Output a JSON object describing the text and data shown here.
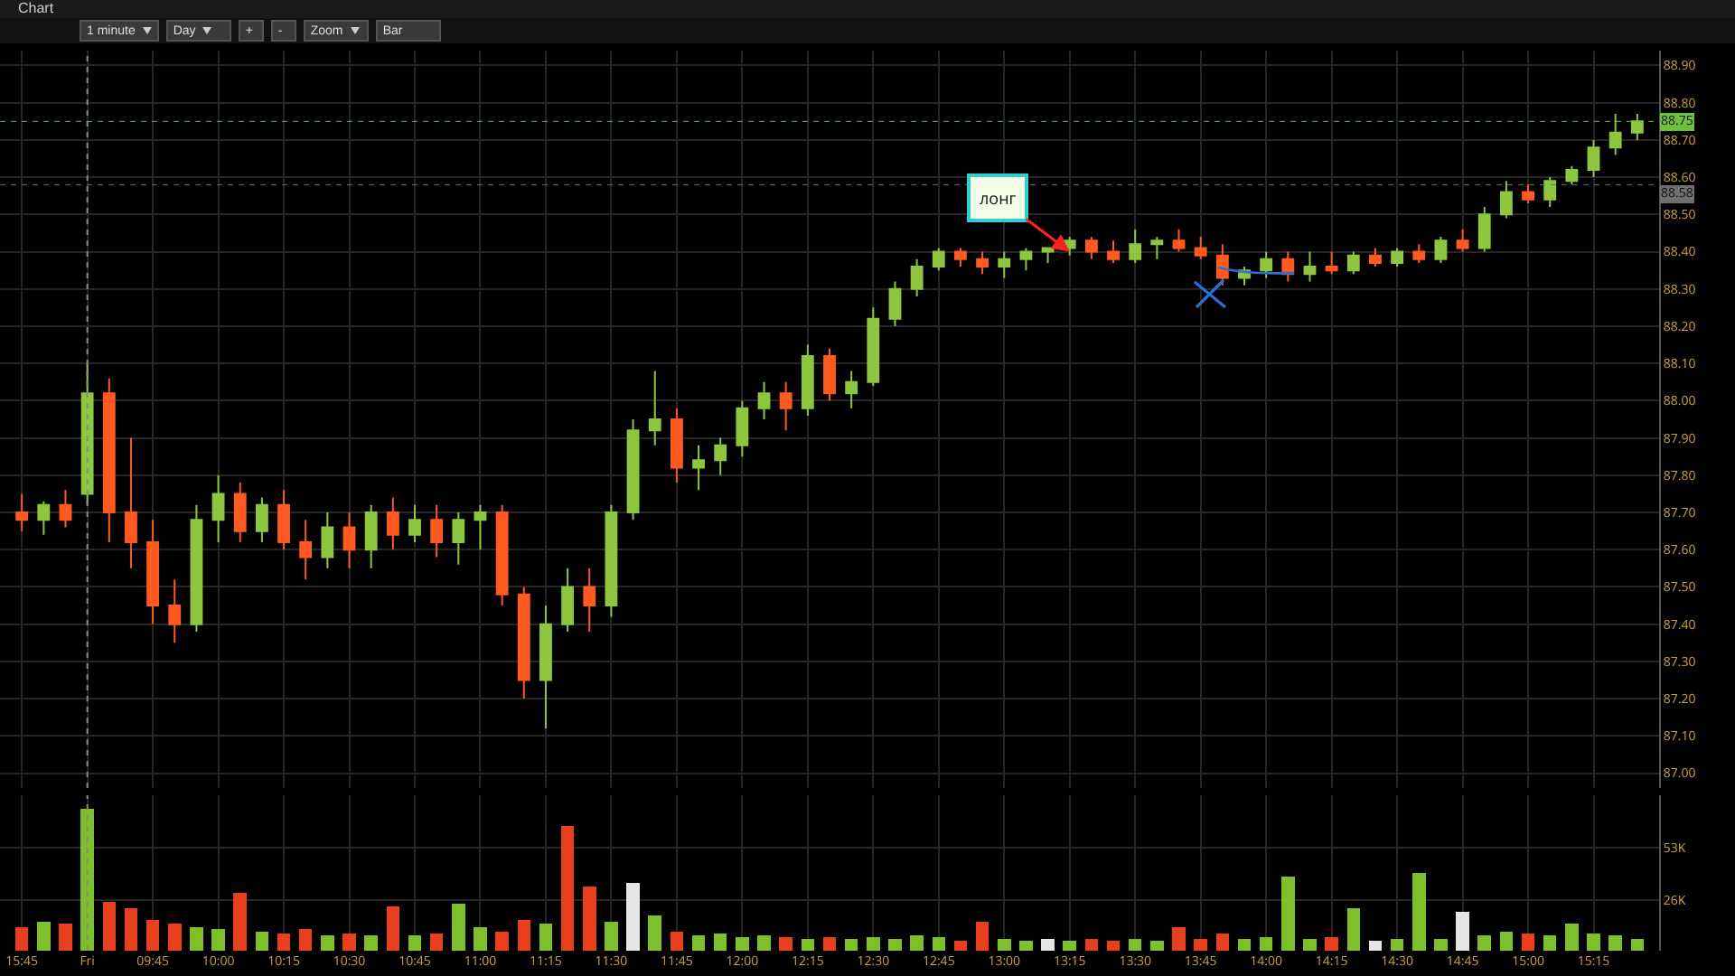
{
  "chart_data": [
    {
      "type": "candlestick",
      "title": "Chart",
      "categories": [
        "15:45",
        null,
        null,
        "Fri",
        null,
        null,
        "09:45",
        null,
        null,
        "10:00",
        null,
        null,
        "10:15",
        null,
        null,
        "10:30",
        null,
        null,
        "10:45",
        null,
        null,
        "11:00",
        null,
        null,
        "11:15",
        null,
        null,
        "11:30",
        null,
        null,
        "11:45",
        null,
        null,
        "12:00",
        null,
        null,
        "12:15",
        null,
        null,
        "12:30",
        null,
        null,
        "12:45",
        null,
        null,
        "13:00",
        null,
        null,
        "13:15",
        null,
        null,
        "13:30",
        null,
        null,
        "13:45",
        null,
        null,
        "14:00",
        null,
        null,
        "14:15",
        null,
        null,
        "14:30",
        null,
        null,
        "14:45",
        null,
        null,
        "15:00",
        null,
        null,
        "15:15",
        null,
        null
      ],
      "ohlc": [
        [
          87.7,
          87.75,
          87.65,
          87.68
        ],
        [
          87.68,
          87.73,
          87.64,
          87.72
        ],
        [
          87.72,
          87.76,
          87.66,
          87.68
        ],
        [
          87.75,
          88.1,
          87.72,
          88.02
        ],
        [
          88.02,
          88.06,
          87.62,
          87.7
        ],
        [
          87.7,
          87.9,
          87.55,
          87.62
        ],
        [
          87.62,
          87.68,
          87.4,
          87.45
        ],
        [
          87.45,
          87.52,
          87.35,
          87.4
        ],
        [
          87.4,
          87.72,
          87.38,
          87.68
        ],
        [
          87.68,
          87.8,
          87.62,
          87.75
        ],
        [
          87.75,
          87.78,
          87.62,
          87.65
        ],
        [
          87.65,
          87.74,
          87.62,
          87.72
        ],
        [
          87.72,
          87.76,
          87.6,
          87.62
        ],
        [
          87.62,
          87.68,
          87.52,
          87.58
        ],
        [
          87.58,
          87.7,
          87.55,
          87.66
        ],
        [
          87.66,
          87.7,
          87.55,
          87.6
        ],
        [
          87.6,
          87.72,
          87.55,
          87.7
        ],
        [
          87.7,
          87.74,
          87.6,
          87.64
        ],
        [
          87.64,
          87.72,
          87.62,
          87.68
        ],
        [
          87.68,
          87.72,
          87.58,
          87.62
        ],
        [
          87.62,
          87.7,
          87.56,
          87.68
        ],
        [
          87.68,
          87.72,
          87.6,
          87.7
        ],
        [
          87.7,
          87.72,
          87.45,
          87.48
        ],
        [
          87.48,
          87.5,
          87.2,
          87.25
        ],
        [
          87.25,
          87.45,
          87.12,
          87.4
        ],
        [
          87.4,
          87.55,
          87.38,
          87.5
        ],
        [
          87.5,
          87.55,
          87.38,
          87.45
        ],
        [
          87.45,
          87.72,
          87.42,
          87.7
        ],
        [
          87.7,
          87.95,
          87.68,
          87.92
        ],
        [
          87.92,
          88.08,
          87.88,
          87.95
        ],
        [
          87.95,
          87.98,
          87.78,
          87.82
        ],
        [
          87.82,
          87.88,
          87.76,
          87.84
        ],
        [
          87.84,
          87.9,
          87.8,
          87.88
        ],
        [
          87.88,
          88.0,
          87.85,
          87.98
        ],
        [
          87.98,
          88.05,
          87.95,
          88.02
        ],
        [
          88.02,
          88.05,
          87.92,
          87.98
        ],
        [
          87.98,
          88.15,
          87.96,
          88.12
        ],
        [
          88.12,
          88.14,
          88.0,
          88.02
        ],
        [
          88.02,
          88.08,
          87.98,
          88.05
        ],
        [
          88.05,
          88.25,
          88.04,
          88.22
        ],
        [
          88.22,
          88.32,
          88.2,
          88.3
        ],
        [
          88.3,
          88.38,
          88.28,
          88.36
        ],
        [
          88.36,
          88.41,
          88.35,
          88.4
        ],
        [
          88.4,
          88.41,
          88.36,
          88.38
        ],
        [
          88.38,
          88.4,
          88.34,
          88.36
        ],
        [
          88.36,
          88.4,
          88.33,
          88.38
        ],
        [
          88.38,
          88.41,
          88.35,
          88.4
        ],
        [
          88.4,
          88.41,
          88.37,
          88.41
        ],
        [
          88.41,
          88.44,
          88.39,
          88.43
        ],
        [
          88.43,
          88.44,
          88.38,
          88.4
        ],
        [
          88.4,
          88.43,
          88.37,
          88.38
        ],
        [
          88.38,
          88.46,
          88.37,
          88.42
        ],
        [
          88.42,
          88.44,
          88.38,
          88.43
        ],
        [
          88.43,
          88.46,
          88.4,
          88.41
        ],
        [
          88.41,
          88.44,
          88.38,
          88.39
        ],
        [
          88.39,
          88.42,
          88.31,
          88.33
        ],
        [
          88.33,
          88.36,
          88.31,
          88.35
        ],
        [
          88.35,
          88.4,
          88.33,
          88.38
        ],
        [
          88.38,
          88.4,
          88.32,
          88.34
        ],
        [
          88.34,
          88.4,
          88.32,
          88.36
        ],
        [
          88.36,
          88.4,
          88.34,
          88.35
        ],
        [
          88.35,
          88.4,
          88.34,
          88.39
        ],
        [
          88.39,
          88.41,
          88.36,
          88.37
        ],
        [
          88.37,
          88.41,
          88.36,
          88.4
        ],
        [
          88.4,
          88.42,
          88.37,
          88.38
        ],
        [
          88.38,
          88.44,
          88.37,
          88.43
        ],
        [
          88.43,
          88.46,
          88.4,
          88.41
        ],
        [
          88.41,
          88.52,
          88.4,
          88.5
        ],
        [
          88.5,
          88.59,
          88.49,
          88.56
        ],
        [
          88.56,
          88.58,
          88.53,
          88.54
        ],
        [
          88.54,
          88.6,
          88.52,
          88.59
        ],
        [
          88.59,
          88.63,
          88.58,
          88.62
        ],
        [
          88.62,
          88.7,
          88.6,
          88.68
        ],
        [
          88.68,
          88.77,
          88.66,
          88.72
        ],
        [
          88.72,
          88.77,
          88.7,
          88.75
        ]
      ],
      "ylim": [
        86.96,
        88.94
      ],
      "yticks": [
        {
          "value": 87.0,
          "label": "87.00"
        },
        {
          "value": 87.1,
          "label": "87.10"
        },
        {
          "value": 87.2,
          "label": "87.20"
        },
        {
          "value": 87.3,
          "label": "87.30"
        },
        {
          "value": 87.4,
          "label": "87.40"
        },
        {
          "value": 87.5,
          "label": "87.50"
        },
        {
          "value": 87.6,
          "label": "87.60"
        },
        {
          "value": 87.7,
          "label": "87.70"
        },
        {
          "value": 87.8,
          "label": "87.80"
        },
        {
          "value": 87.9,
          "label": "87.90"
        },
        {
          "value": 88.0,
          "label": "88.00"
        },
        {
          "value": 88.1,
          "label": "88.10"
        },
        {
          "value": 88.2,
          "label": "88.20"
        },
        {
          "value": 88.3,
          "label": "88.30"
        },
        {
          "value": 88.4,
          "label": "88.40"
        },
        {
          "value": 88.5,
          "label": "88.50"
        },
        {
          "value": 88.6,
          "label": "88.60"
        },
        {
          "value": 88.7,
          "label": "88.70"
        },
        {
          "value": 88.8,
          "label": "88.80"
        },
        {
          "value": 88.9,
          "label": "88.90"
        }
      ],
      "grid": true,
      "tick_labels": "y",
      "ref_lines": [
        {
          "axis": "x",
          "value": "Fri",
          "color": "#8a8a8a",
          "line_style": "dotted"
        },
        {
          "axis": "y",
          "value": 88.75,
          "label": "88.75",
          "color": "#6cc23a",
          "line_style": "dotted"
        },
        {
          "axis": "y",
          "value": 88.58,
          "label": "88.58",
          "color": "#707070",
          "line_style": "dotted"
        }
      ],
      "annotations": [
        "1 minute",
        "Day",
        "+",
        "-",
        "Zoom",
        "Bar",
        {
          "text": "лонг",
          "x": "13:15",
          "y": 88.4
        }
      ]
    },
    {
      "type": "bar",
      "categories": [
        "15:45",
        null,
        null,
        "Fri",
        null,
        null,
        "09:45",
        null,
        null,
        "10:00",
        null,
        null,
        "10:15",
        null,
        null,
        "10:30",
        null,
        null,
        "10:45",
        null,
        null,
        "11:00",
        null,
        null,
        "11:15",
        null,
        null,
        "11:30",
        null,
        null,
        "11:45",
        null,
        null,
        "12:00",
        null,
        null,
        "12:15",
        null,
        null,
        "12:30",
        null,
        null,
        "12:45",
        null,
        null,
        "13:00",
        null,
        null,
        "13:15",
        null,
        null,
        "13:30",
        null,
        null,
        "13:45",
        null,
        null,
        "14:00",
        null,
        null,
        "14:15",
        null,
        null,
        "14:30",
        null,
        null,
        "14:45",
        null,
        null,
        "15:00",
        null,
        null,
        "15:15",
        null,
        null
      ],
      "values": [
        12000,
        15000,
        14000,
        73000,
        25000,
        22000,
        16000,
        14000,
        12000,
        11000,
        30000,
        10000,
        9000,
        11000,
        8000,
        9000,
        8000,
        23000,
        8000,
        9000,
        24000,
        12000,
        10000,
        16000,
        14000,
        64000,
        33000,
        15000,
        35000,
        18000,
        10000,
        8000,
        9000,
        7000,
        8000,
        7000,
        6000,
        7000,
        6000,
        7000,
        6000,
        8000,
        7000,
        5000,
        15000,
        6000,
        5000,
        6000,
        5000,
        6000,
        5000,
        6000,
        5000,
        12000,
        6000,
        9000,
        6000,
        7000,
        38000,
        6000,
        7000,
        22000,
        5000,
        6000,
        40000,
        6000,
        20000,
        8000,
        10000,
        9000,
        8000,
        14000,
        9000,
        8000,
        6000
      ],
      "colors": [
        "#e8401c",
        "#7fbf2a",
        "#e8401c",
        "#7fbf2a",
        "#e8401c",
        "#e8401c",
        "#e8401c",
        "#e8401c",
        "#7fbf2a",
        "#7fbf2a",
        "#e8401c",
        "#7fbf2a",
        "#e8401c",
        "#e8401c",
        "#7fbf2a",
        "#e8401c",
        "#7fbf2a",
        "#e8401c",
        "#7fbf2a",
        "#e8401c",
        "#7fbf2a",
        "#7fbf2a",
        "#e8401c",
        "#e8401c",
        "#7fbf2a",
        "#e8401c",
        "#e8401c",
        "#7fbf2a",
        "#e6e6e6",
        "#7fbf2a",
        "#e8401c",
        "#7fbf2a",
        "#7fbf2a",
        "#7fbf2a",
        "#7fbf2a",
        "#e8401c",
        "#7fbf2a",
        "#e8401c",
        "#7fbf2a",
        "#7fbf2a",
        "#7fbf2a",
        "#7fbf2a",
        "#7fbf2a",
        "#e8401c",
        "#e8401c",
        "#7fbf2a",
        "#7fbf2a",
        "#e6e6e6",
        "#7fbf2a",
        "#e8401c",
        "#e8401c",
        "#7fbf2a",
        "#7fbf2a",
        "#e8401c",
        "#e8401c",
        "#e8401c",
        "#7fbf2a",
        "#7fbf2a",
        "#7fbf2a",
        "#7fbf2a",
        "#e8401c",
        "#7fbf2a",
        "#e6e6e6",
        "#7fbf2a",
        "#7fbf2a",
        "#7fbf2a",
        "#e6e6e6",
        "#7fbf2a",
        "#7fbf2a",
        "#e8401c",
        "#7fbf2a",
        "#7fbf2a",
        "#7fbf2a",
        "#7fbf2a",
        "#7fbf2a"
      ],
      "ylim": [
        0,
        80000
      ],
      "yticks": [
        {
          "value": 26000,
          "label": "26K"
        },
        {
          "value": 53000,
          "label": "53K"
        }
      ],
      "grid": true,
      "ref_lines": [
        {
          "axis": "x",
          "value": "Fri",
          "color": "#8a8a8a",
          "line_style": "dotted"
        }
      ]
    }
  ]
}
